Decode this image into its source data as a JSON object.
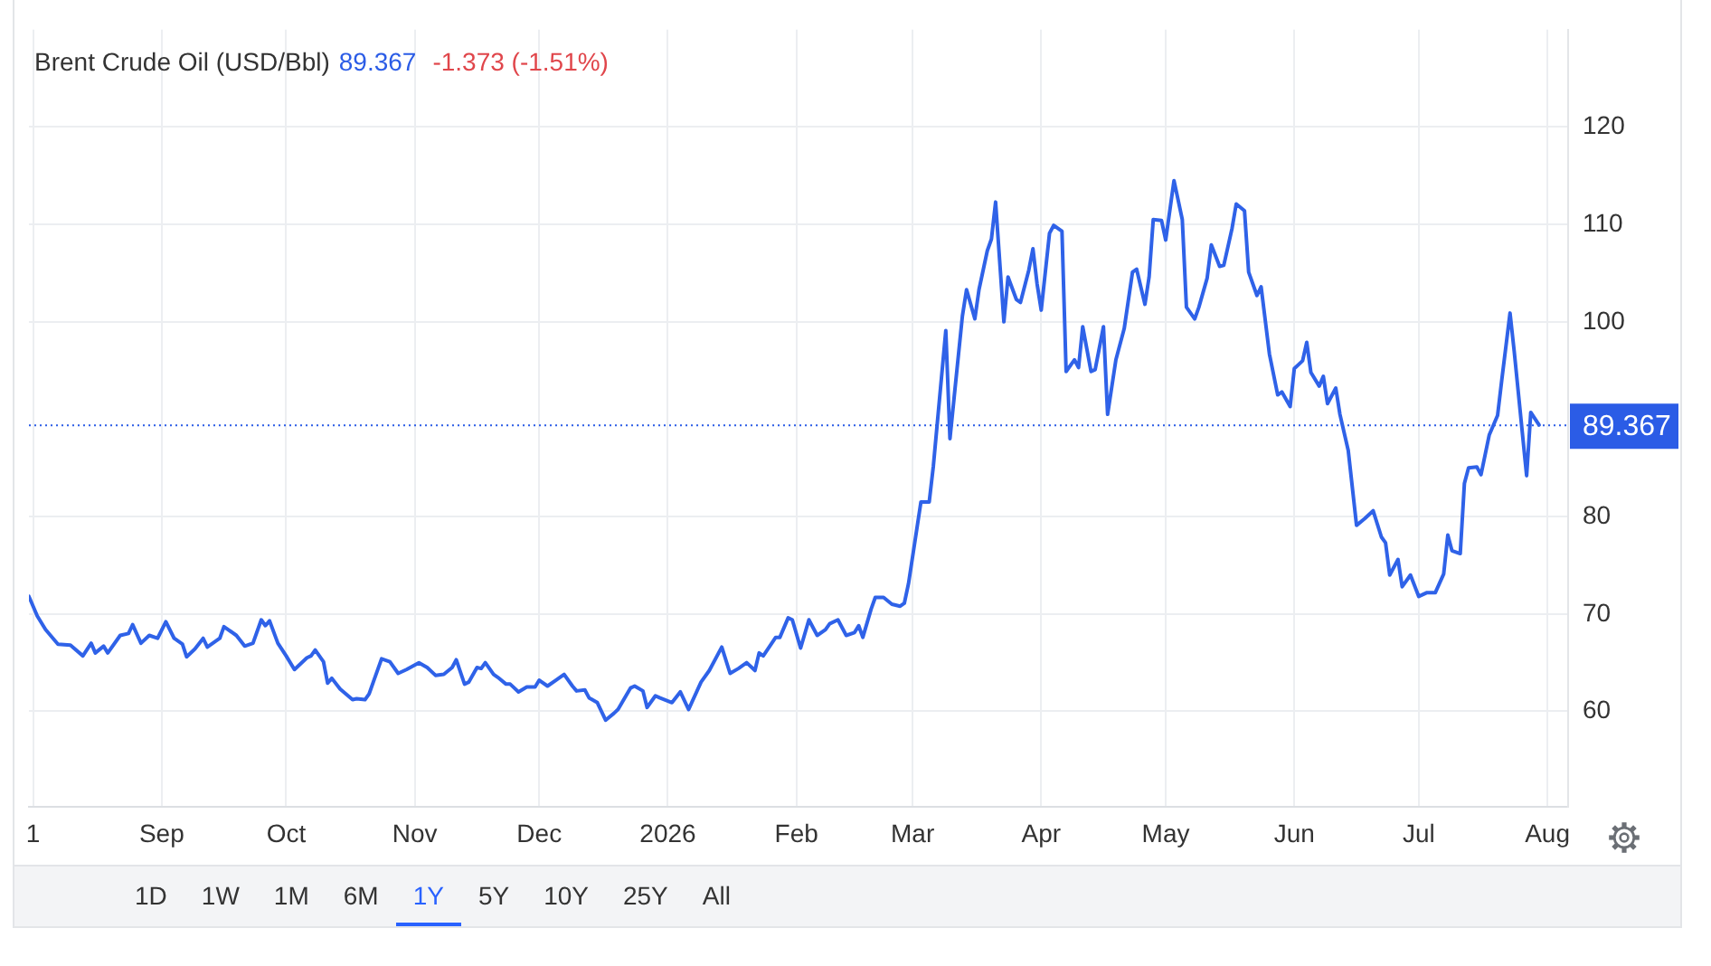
{
  "chart_data": {
    "type": "line",
    "title": "Brent Crude Oil (USD/Bbl)",
    "annotations": [
      "89.367",
      "-1.373 (-1.51%)",
      "1D",
      "1W",
      "1M",
      "6M",
      "1Y",
      "5Y",
      "10Y",
      "25Y",
      "All"
    ],
    "x": [
      "2025-07-31",
      "2025-08-02",
      "2025-08-04",
      "2025-08-07",
      "2025-08-10",
      "2025-08-13",
      "2025-08-15",
      "2025-08-16",
      "2025-08-18",
      "2025-08-19",
      "2025-08-22",
      "2025-08-24",
      "2025-08-25",
      "2025-08-27",
      "2025-08-29",
      "2025-08-31",
      "2025-09-02",
      "2025-09-04",
      "2025-09-06",
      "2025-09-07",
      "2025-09-09",
      "2025-09-11",
      "2025-09-12",
      "2025-09-15",
      "2025-09-16",
      "2025-09-19",
      "2025-09-21",
      "2025-09-23",
      "2025-09-25",
      "2025-09-26",
      "2025-09-27",
      "2025-09-29",
      "2025-10-01",
      "2025-10-03",
      "2025-10-06",
      "2025-10-07",
      "2025-10-08",
      "2025-10-10",
      "2025-10-11",
      "2025-10-12",
      "2025-10-14",
      "2025-10-17",
      "2025-10-18",
      "2025-10-20",
      "2025-10-21",
      "2025-10-22",
      "2025-10-24",
      "2025-10-26",
      "2025-10-28",
      "2025-10-30",
      "2025-11-02",
      "2025-11-04",
      "2025-11-06",
      "2025-11-08",
      "2025-11-10",
      "2025-11-11",
      "2025-11-13",
      "2025-11-14",
      "2025-11-16",
      "2025-11-17",
      "2025-11-18",
      "2025-11-20",
      "2025-11-21",
      "2025-11-23",
      "2025-11-24",
      "2025-11-26",
      "2025-11-28",
      "2025-11-30",
      "2025-12-01",
      "2025-12-03",
      "2025-12-05",
      "2025-12-07",
      "2025-12-09",
      "2025-12-10",
      "2025-12-12",
      "2025-12-13",
      "2025-12-15",
      "2025-12-17",
      "2025-12-19",
      "2025-12-20",
      "2025-12-23",
      "2025-12-24",
      "2025-12-26",
      "2025-12-27",
      "2025-12-29",
      "2025-12-30",
      "2026-01-02",
      "2026-01-04",
      "2026-01-06",
      "2026-01-09",
      "2026-01-11",
      "2026-01-14",
      "2026-01-16",
      "2026-01-18",
      "2026-01-20",
      "2026-01-22",
      "2026-01-23",
      "2026-01-24",
      "2026-01-27",
      "2026-01-28",
      "2026-01-30",
      "2026-01-31",
      "2026-02-02",
      "2026-02-04",
      "2026-02-06",
      "2026-02-08",
      "2026-02-09",
      "2026-02-11",
      "2026-02-13",
      "2026-02-15",
      "2026-02-16",
      "2026-02-17",
      "2026-02-19",
      "2026-02-20",
      "2026-02-22",
      "2026-02-24",
      "2026-02-26",
      "2026-02-27",
      "2026-02-28",
      "2026-03-03",
      "2026-03-05",
      "2026-03-06",
      "2026-03-09",
      "2026-03-10",
      "2026-03-11",
      "2026-03-13",
      "2026-03-14",
      "2026-03-16",
      "2026-03-17",
      "2026-03-19",
      "2026-03-20",
      "2026-03-21",
      "2026-03-23",
      "2026-03-24",
      "2026-03-26",
      "2026-03-27",
      "2026-03-29",
      "2026-03-30",
      "2026-03-31",
      "2026-04-01",
      "2026-04-03",
      "2026-04-04",
      "2026-04-06",
      "2026-04-07",
      "2026-04-09",
      "2026-04-10",
      "2026-04-11",
      "2026-04-13",
      "2026-04-14",
      "2026-04-16",
      "2026-04-17",
      "2026-04-19",
      "2026-04-21",
      "2026-04-23",
      "2026-04-24",
      "2026-04-26",
      "2026-04-27",
      "2026-04-28",
      "2026-04-30",
      "2026-05-01",
      "2026-05-03",
      "2026-05-05",
      "2026-05-06",
      "2026-05-08",
      "2026-05-09",
      "2026-05-11",
      "2026-05-12",
      "2026-05-14",
      "2026-05-15",
      "2026-05-17",
      "2026-05-18",
      "2026-05-20",
      "2026-05-21",
      "2026-05-23",
      "2026-05-24",
      "2026-05-26",
      "2026-05-28",
      "2026-05-29",
      "2026-05-31",
      "2026-06-01",
      "2026-06-03",
      "2026-06-04",
      "2026-06-05",
      "2026-06-07",
      "2026-06-08",
      "2026-06-09",
      "2026-06-11",
      "2026-06-12",
      "2026-06-14",
      "2026-06-16",
      "2026-06-18",
      "2026-06-20",
      "2026-06-22",
      "2026-06-23",
      "2026-06-24",
      "2026-06-26",
      "2026-06-27",
      "2026-06-29",
      "2026-07-01",
      "2026-07-03",
      "2026-07-05",
      "2026-07-07",
      "2026-07-08",
      "2026-07-09",
      "2026-07-11",
      "2026-07-12",
      "2026-07-13",
      "2026-07-15",
      "2026-07-16",
      "2026-07-18",
      "2026-07-20",
      "2026-07-21",
      "2026-07-23",
      "2026-07-24",
      "2026-07-27",
      "2026-07-28",
      "2026-07-30"
    ],
    "values": [
      71.8,
      69.8,
      68.4,
      66.9,
      66.8,
      65.7,
      67.0,
      66.0,
      66.7,
      66.0,
      67.8,
      68.0,
      68.9,
      67.0,
      67.8,
      67.5,
      69.2,
      67.5,
      66.9,
      65.6,
      66.4,
      67.5,
      66.6,
      67.5,
      68.7,
      67.8,
      66.7,
      67.0,
      69.4,
      68.8,
      69.3,
      67.0,
      65.7,
      64.3,
      65.5,
      65.7,
      66.3,
      65.1,
      62.9,
      63.4,
      62.3,
      61.2,
      61.3,
      61.2,
      61.8,
      63.0,
      65.4,
      65.1,
      63.9,
      64.3,
      65.0,
      64.5,
      63.7,
      63.8,
      64.5,
      65.3,
      62.8,
      63.0,
      64.5,
      64.4,
      65.0,
      63.8,
      63.5,
      62.8,
      62.8,
      62.0,
      62.5,
      62.5,
      63.2,
      62.6,
      63.2,
      63.8,
      62.6,
      62.1,
      62.2,
      61.4,
      60.9,
      59.1,
      59.8,
      60.2,
      62.4,
      62.6,
      62.1,
      60.4,
      61.6,
      61.4,
      60.9,
      62.0,
      60.2,
      63.0,
      64.2,
      66.6,
      63.9,
      64.4,
      65.0,
      64.2,
      66.0,
      65.7,
      67.6,
      67.6,
      69.6,
      69.4,
      66.5,
      69.4,
      67.8,
      68.4,
      69.0,
      69.4,
      67.8,
      68.1,
      68.8,
      67.6,
      70.5,
      71.7,
      71.7,
      71.0,
      70.8,
      71.1,
      73.1,
      81.5,
      81.5,
      85.2,
      99.1,
      88.0,
      92.2,
      100.6,
      103.3,
      100.3,
      103.3,
      107.3,
      108.5,
      112.3,
      100.0,
      104.6,
      102.3,
      102.0,
      105.3,
      107.5,
      103.9,
      101.2,
      109.1,
      109.9,
      109.3,
      94.9,
      96.1,
      95.3,
      99.5,
      94.9,
      95.1,
      99.5,
      90.5,
      96.1,
      99.3,
      105.1,
      105.4,
      101.8,
      104.6,
      110.5,
      110.4,
      108.4,
      114.5,
      110.5,
      101.5,
      100.3,
      101.5,
      104.5,
      107.9,
      105.7,
      105.8,
      109.6,
      112.1,
      111.4,
      105.1,
      102.7,
      103.6,
      96.7,
      92.5,
      92.8,
      91.3,
      95.2,
      96.0,
      97.9,
      94.8,
      93.4,
      94.4,
      91.6,
      93.2,
      90.5,
      86.8,
      79.1,
      79.8,
      80.6,
      77.9,
      77.3,
      74.0,
      75.6,
      72.8,
      74.0,
      71.8,
      72.2,
      72.2,
      74.1,
      78.1,
      76.5,
      76.2,
      83.4,
      85.0,
      85.1,
      84.3,
      88.4,
      90.4,
      94.0,
      100.9,
      97.0,
      84.2,
      90.7,
      89.4
    ],
    "color": "#2f62e8",
    "xlim": [
      "2025-07-31",
      "2026-08-06"
    ],
    "xticks": [
      {
        "value": "2025-08-01",
        "label": "1"
      },
      {
        "value": "2025-09-01",
        "label": "Sep"
      },
      {
        "value": "2025-10-01",
        "label": "Oct"
      },
      {
        "value": "2025-11-01",
        "label": "Nov"
      },
      {
        "value": "2025-12-01",
        "label": "Dec"
      },
      {
        "value": "2026-01-01",
        "label": "2026"
      },
      {
        "value": "2026-02-01",
        "label": "Feb"
      },
      {
        "value": "2026-03-01",
        "label": "Mar"
      },
      {
        "value": "2026-04-01",
        "label": "Apr"
      },
      {
        "value": "2026-05-01",
        "label": "May"
      },
      {
        "value": "2026-06-01",
        "label": "Jun"
      },
      {
        "value": "2026-07-01",
        "label": "Jul"
      },
      {
        "value": "2026-08-01",
        "label": "Aug"
      }
    ],
    "ylim": [
      50.2,
      130
    ],
    "yticks": [
      60,
      70,
      80,
      100,
      110,
      120
    ],
    "grid": true,
    "legend": false,
    "marker": "none",
    "line_style": "solid",
    "ref_lines": [
      {
        "axis": "y",
        "value": 89.367,
        "label": "89.367",
        "color": "#2b5ce6",
        "line_style": "dotted"
      }
    ]
  }
}
